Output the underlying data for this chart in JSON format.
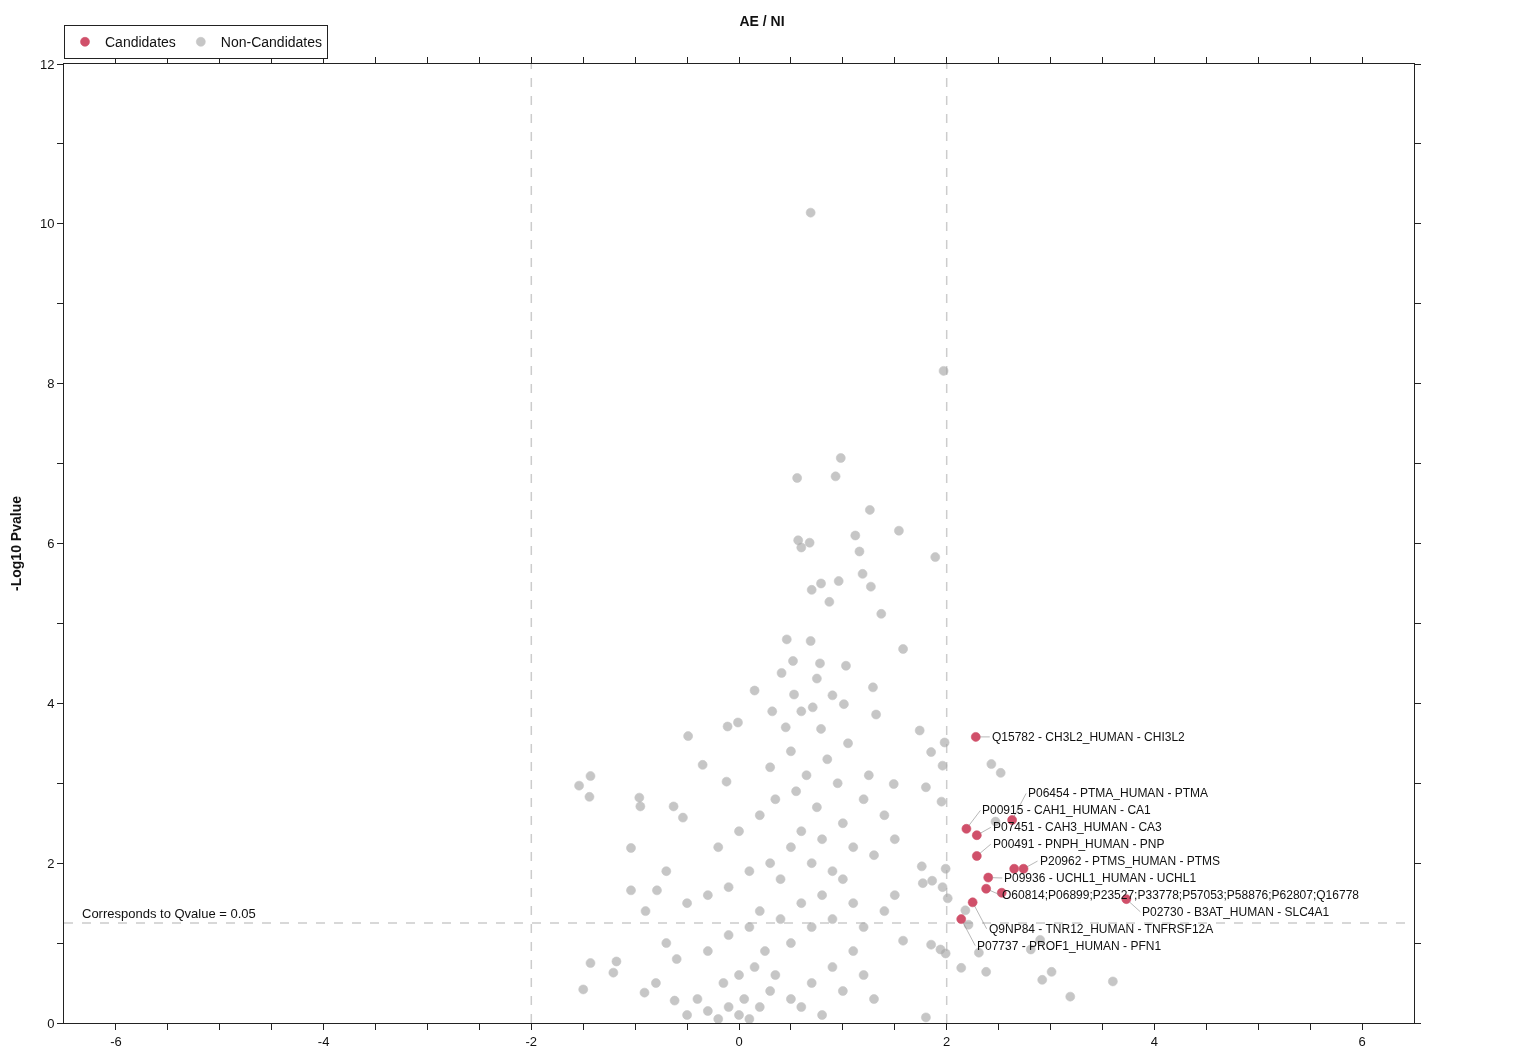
{
  "chart_data": {
    "type": "scatter",
    "title": "AE / NI",
    "ylabel": "-Log10 Pvalue",
    "xlim": [
      -6.5,
      6.5
    ],
    "ylim": [
      0,
      12
    ],
    "xticks": [
      -6,
      {
        "value": -5.5,
        "label": null
      },
      {
        "value": -5,
        "label": null
      },
      {
        "value": -4.5,
        "label": null
      },
      -4,
      {
        "value": -3.5,
        "label": null
      },
      {
        "value": -3,
        "label": null
      },
      {
        "value": -2.5,
        "label": null
      },
      -2,
      {
        "value": -1.5,
        "label": null
      },
      {
        "value": -1,
        "label": null
      },
      {
        "value": -0.5,
        "label": null
      },
      0,
      {
        "value": 0.5,
        "label": null
      },
      {
        "value": 1,
        "label": null
      },
      {
        "value": 1.5,
        "label": null
      },
      2,
      {
        "value": 2.5,
        "label": null
      },
      {
        "value": 3,
        "label": null
      },
      {
        "value": 3.5,
        "label": null
      },
      4,
      {
        "value": 4.5,
        "label": null
      },
      {
        "value": 5,
        "label": null
      },
      {
        "value": 5.5,
        "label": null
      },
      6
    ],
    "yticks": [
      0,
      {
        "value": 1,
        "label": null
      },
      2,
      {
        "value": 3,
        "label": null
      },
      4,
      {
        "value": 5,
        "label": null
      },
      6,
      {
        "value": 7,
        "label": null
      },
      8,
      {
        "value": 9,
        "label": null
      },
      10,
      {
        "value": 11,
        "label": null
      },
      12
    ],
    "grid": false,
    "legend": "top left",
    "marker": "circle",
    "ref_lines": [
      {
        "axis": "x",
        "value": -2,
        "label": null,
        "color": "#cccccc",
        "line_style": "dashed"
      },
      {
        "axis": "x",
        "value": 2,
        "label": null,
        "color": "#cccccc",
        "line_style": "dashed"
      },
      {
        "axis": "y",
        "value": 1.25,
        "label": null,
        "color": "#cccccc",
        "line_style": "dashed"
      }
    ],
    "annotations": [
      "Corresponds to Qvalue = 0.05"
    ],
    "series": [
      {
        "name": "Non-Candidates",
        "color": "#a8a8a8",
        "x": [
          0.69,
          1.97,
          0.98,
          0.56,
          0.93,
          1.26,
          0.57,
          0.68,
          1.12,
          1.54,
          1.89,
          0.6,
          1.16,
          0.79,
          0.7,
          0.96,
          1.19,
          1.27,
          0.87,
          1.37,
          0.46,
          0.52,
          0.69,
          0.41,
          0.78,
          0.75,
          1.58,
          1.03,
          1.29,
          0.15,
          1.01,
          1.32,
          0.53,
          0.32,
          0.71,
          0.79,
          1.74,
          1.98,
          -0.49,
          -0.11,
          -0.01,
          2.43,
          2.52,
          1.85,
          1.96,
          -1.54,
          -1.43,
          -1.44,
          -0.96,
          -0.95,
          -1.04,
          -0.63,
          -0.35,
          -0.54,
          -0.12,
          1.95,
          2.47,
          1.8,
          1.49,
          -1.5,
          -1.43,
          -1.18,
          -1.21,
          -0.91,
          -0.62,
          -0.79,
          -1.04,
          3.6,
          3.19,
          2.92,
          3.01,
          2.81,
          2.9,
          2.31,
          2.38,
          2.14,
          1.8,
          1.94,
          1.99,
          1.85,
          2.18,
          2.01,
          1.99,
          1.96,
          1.86,
          1.77,
          1.76,
          2.21,
          1.58,
          -0.5,
          -0.4,
          -0.3,
          -0.2,
          -0.1,
          0,
          0.05,
          0.1,
          0.2,
          0.3,
          -0.15,
          0,
          0.15,
          0.25,
          0.35,
          0.5,
          0.6,
          0.7,
          0.8,
          0.9,
          1.0,
          1.1,
          1.2,
          1.3,
          -0.6,
          -0.7,
          -0.8,
          -0.3,
          -0.1,
          0.1,
          0.2,
          0.4,
          0.5,
          0.6,
          0.7,
          0.8,
          0.9,
          1.0,
          1.1,
          1.2,
          1.4,
          1.5,
          -0.5,
          -0.3,
          -0.1,
          0.1,
          0.3,
          0.4,
          0.5,
          0.6,
          0.7,
          0.8,
          0.9,
          1.0,
          1.1,
          1.3,
          1.5,
          -0.2,
          0,
          0.2,
          0.35,
          0.55,
          0.75,
          0.95,
          1.2,
          1.4,
          0.3,
          0.5,
          0.65,
          0.85,
          1.05,
          1.25,
          -0.7,
          -0.9,
          0.45,
          0.6,
          0.9
        ],
        "values": [
          10.14,
          8.16,
          7.07,
          6.82,
          6.84,
          6.42,
          6.04,
          6.01,
          6.1,
          6.16,
          5.83,
          5.95,
          5.9,
          5.5,
          5.42,
          5.53,
          5.62,
          5.46,
          5.27,
          5.12,
          4.8,
          4.53,
          4.78,
          4.38,
          4.5,
          4.31,
          4.68,
          4.47,
          4.2,
          4.16,
          3.99,
          3.86,
          4.11,
          3.9,
          3.95,
          3.68,
          3.66,
          3.51,
          3.59,
          3.71,
          3.76,
          3.24,
          3.13,
          3.39,
          3.22,
          2.97,
          3.09,
          2.83,
          2.82,
          2.71,
          2.19,
          2.71,
          3.23,
          2.57,
          3.02,
          2.77,
          2.52,
          2.95,
          2.99,
          0.42,
          0.75,
          0.77,
          0.63,
          0.38,
          0.28,
          1.66,
          1.66,
          0.52,
          0.33,
          0.54,
          0.64,
          0.92,
          1.04,
          0.88,
          0.64,
          0.69,
          0.07,
          0.92,
          0.87,
          0.98,
          1.41,
          1.56,
          1.93,
          1.7,
          1.78,
          1.75,
          1.96,
          1.23,
          1.03,
          0.1,
          0.3,
          0.15,
          0.05,
          0.2,
          0.1,
          0.3,
          0.05,
          0.2,
          0.4,
          0.5,
          0.6,
          0.7,
          0.9,
          0.6,
          0.3,
          0.2,
          0.5,
          0.1,
          0.7,
          0.4,
          0.9,
          0.6,
          0.3,
          0.8,
          1.0,
          0.5,
          0.9,
          1.1,
          1.2,
          1.4,
          1.3,
          1.0,
          1.5,
          1.2,
          1.6,
          1.3,
          1.8,
          1.5,
          1.2,
          1.4,
          1.6,
          1.5,
          1.6,
          1.7,
          1.9,
          2.0,
          1.8,
          2.2,
          2.4,
          2.0,
          2.3,
          1.9,
          2.5,
          2.2,
          2.1,
          2.3,
          2.2,
          2.4,
          2.6,
          2.8,
          2.9,
          2.7,
          3.0,
          2.8,
          2.6,
          3.2,
          3.4,
          3.1,
          3.3,
          3.5,
          3.1,
          1.9,
          1.4,
          3.7,
          3.9,
          4.1
        ]
      },
      {
        "name": "Candidates",
        "color": "#d0506a",
        "x": [
          2.28,
          2.63,
          2.19,
          2.29,
          2.29,
          2.74,
          2.65,
          2.4,
          2.38,
          2.53,
          3.73,
          2.25,
          2.14
        ],
        "values": [
          3.58,
          2.54,
          2.43,
          2.35,
          2.09,
          1.93,
          1.93,
          1.82,
          1.68,
          1.63,
          1.55,
          1.51,
          1.3
        ],
        "value_labels": [
          "Q15782 - CH3L2_HUMAN - CHI3L2",
          "P06454 - PTMA_HUMAN - PTMA",
          "P00915 - CAH1_HUMAN - CA1",
          "P07451 - CAH3_HUMAN - CA3",
          "P00491 - PNPH_HUMAN - PNP",
          "P20962 - PTMS_HUMAN - PTMS",
          null,
          "P09936 - UCHL1_HUMAN - UCHL1",
          "O60814;P06899;P23527;P33778;P57053;P58876;P62807;Q16778",
          null,
          "P02730 - B3AT_HUMAN - SLC4A1",
          "Q9NP84 - TNR12_HUMAN - TNFRSF12A",
          "P07737 - PROF1_HUMAN - PFN1"
        ]
      }
    ]
  }
}
